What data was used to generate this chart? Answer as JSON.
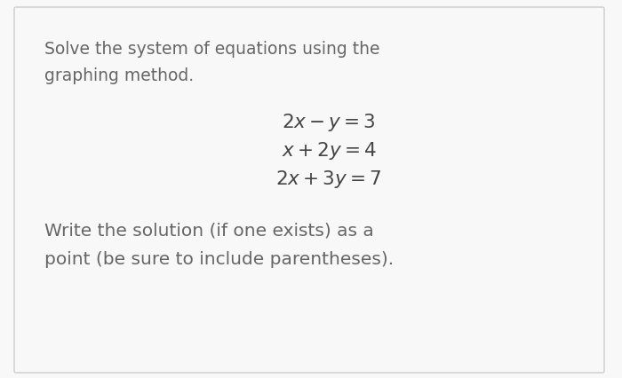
{
  "background_color": "#f8f8f8",
  "border_color": "#cccccc",
  "text_color": "#666666",
  "math_color": "#444444",
  "line1_top": "Solve the system of equations using the",
  "line1_bottom": "graphing method.",
  "eq1": "$2x - y = 3$",
  "eq2": "$x + 2y = 4$",
  "eq3": "$2x + 3y = 7$",
  "footer1": "Write the solution (if one exists) as a",
  "footer2": "point (be sure to include parentheses).",
  "body_fontsize": 13.5,
  "math_fontsize": 15.5,
  "footer_fontsize": 14.5,
  "fig_width": 7.0,
  "fig_height": 4.26,
  "dpi": 100
}
